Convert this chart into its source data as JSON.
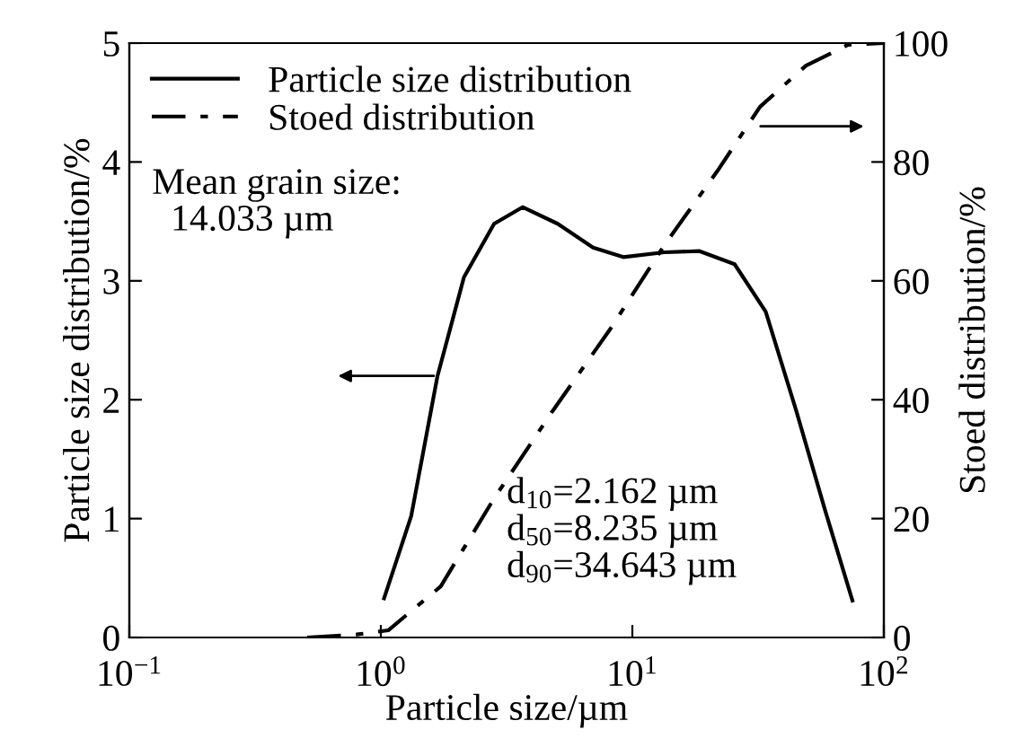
{
  "chart_data": {
    "type": "line",
    "xlabel": "Particle size/µm",
    "ylabel": "Particle size distribution/%",
    "y2label": "Stoed distribution/%",
    "log": "x",
    "xlim": [
      0.1,
      100
    ],
    "xticks": [
      {
        "value": 0.1,
        "label": "10$^{−1}$"
      },
      {
        "value": 1,
        "label": "10$^{0}$"
      },
      {
        "value": 10,
        "label": "10$^{1}$"
      },
      {
        "value": 100,
        "label": "10$^{2}$"
      }
    ],
    "ylim": [
      0,
      5
    ],
    "yticks": [
      0,
      1,
      2,
      3,
      4,
      5
    ],
    "y2lim": [
      0,
      100
    ],
    "y2ticks": [
      0,
      20,
      40,
      60,
      80,
      100
    ],
    "legend": "top left",
    "grid": false,
    "marker": "none",
    "series": [
      {
        "name": "Particle size distribution",
        "color": "#000000",
        "line_style": "solid",
        "x": [
          1.03,
          1.32,
          1.68,
          2.14,
          2.82,
          3.66,
          5.05,
          6.98,
          9.2,
          13.4,
          18.5,
          25.5,
          33.9,
          44.8,
          58.4,
          75
        ],
        "values": [
          0.33,
          1.02,
          2.2,
          3.03,
          3.48,
          3.62,
          3.48,
          3.28,
          3.2,
          3.24,
          3.25,
          3.14,
          2.74,
          1.91,
          1.07,
          0.31
        ]
      },
      {
        "name": "Stoed distribution",
        "color": "#000000",
        "line_style": "dashdot",
        "axis": "y2",
        "x": [
          0.51,
          0.8,
          1.07,
          1.73,
          2.82,
          4.8,
          8.2,
          13.4,
          21.8,
          32.2,
          49,
          72,
          100
        ],
        "values": [
          0,
          0.5,
          1.2,
          8.6,
          23.4,
          38,
          52,
          66,
          78.5,
          89.3,
          96.2,
          99.7,
          100
        ]
      }
    ],
    "annotations": [
      {
        "text": "Mean grain size:\n  14.033 µm"
      },
      {
        "text": "d$_{10}$=2.162 µm\nd$_{50}$=8.235 µm\nd$_{90}$=34.643 µm"
      }
    ]
  }
}
